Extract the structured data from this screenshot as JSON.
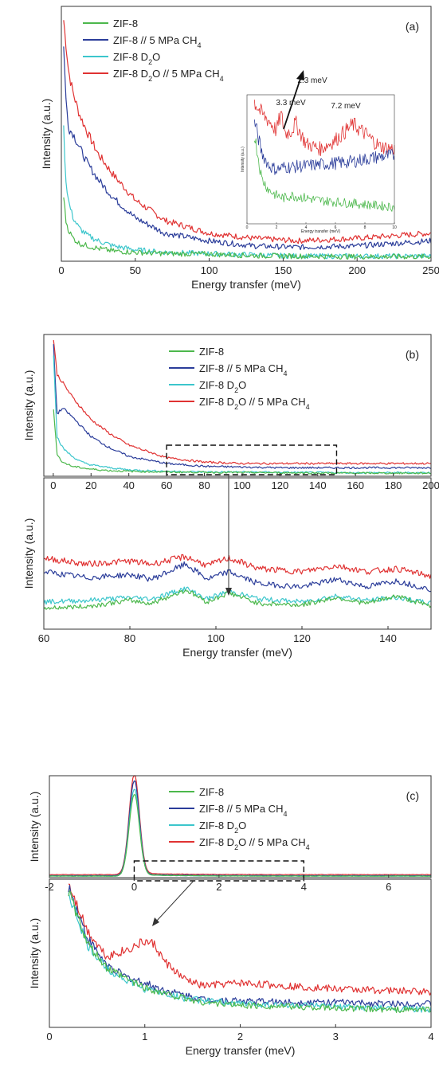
{
  "legend_entries": [
    {
      "pre": "ZIF-8",
      "sub": "",
      "post": "",
      "color": "#4cb84c"
    },
    {
      "pre": "ZIF-8 // 5 MPa CH",
      "sub": "4",
      "post": "",
      "color": "#2b3d9a"
    },
    {
      "pre": "ZIF-8 D",
      "sub": "2",
      "post": "O",
      "color": "#3cc6cc"
    },
    {
      "pre": "ZIF-8 D",
      "sub": "2",
      "post": "O // 5 MPa CH4",
      "color": "#e03232"
    }
  ],
  "legend_red_fix": {
    "pre": "ZIF-8 D",
    "sub": "2",
    "mid": "O // 5 MPa CH",
    "sub2": "4"
  },
  "chart_data": [
    {
      "id": "a-main",
      "type": "line",
      "panel_label": "(a)",
      "xlabel": "Energy transfer (meV)",
      "ylabel": "Intensity (a.u.)",
      "xlim": [
        0,
        250
      ],
      "xticks": [
        "0",
        "50",
        "100",
        "150",
        "200",
        "250"
      ],
      "ylim": [
        0,
        1
      ],
      "series": [
        {
          "name": "ZIF-8 D2O // 5 MPa CH4",
          "x": [
            1,
            3,
            5,
            8,
            12,
            18,
            25,
            35,
            50,
            70,
            100,
            130,
            160,
            200,
            250
          ],
          "y": [
            0.98,
            0.86,
            0.74,
            0.66,
            0.58,
            0.5,
            0.42,
            0.34,
            0.24,
            0.16,
            0.11,
            0.09,
            0.08,
            0.09,
            0.11
          ]
        },
        {
          "name": "ZIF-8 // 5 MPa CH4",
          "x": [
            1,
            3,
            5,
            8,
            12,
            18,
            25,
            35,
            50,
            70,
            100,
            130,
            160,
            200,
            250
          ],
          "y": [
            0.94,
            0.64,
            0.52,
            0.5,
            0.45,
            0.38,
            0.32,
            0.25,
            0.17,
            0.11,
            0.08,
            0.06,
            0.055,
            0.06,
            0.08
          ]
        },
        {
          "name": "ZIF-8 D2O",
          "x": [
            1,
            3,
            5,
            8,
            12,
            18,
            25,
            35,
            50,
            70,
            100,
            130,
            160,
            200,
            250
          ],
          "y": [
            0.6,
            0.32,
            0.23,
            0.17,
            0.13,
            0.1,
            0.08,
            0.06,
            0.045,
            0.035,
            0.03,
            0.025,
            0.02,
            0.02,
            0.02
          ]
        },
        {
          "name": "ZIF-8",
          "x": [
            1,
            3,
            5,
            8,
            12,
            18,
            25,
            35,
            50,
            70,
            100,
            130,
            160,
            200,
            250
          ],
          "y": [
            0.3,
            0.16,
            0.12,
            0.09,
            0.07,
            0.06,
            0.05,
            0.04,
            0.035,
            0.03,
            0.028,
            0.022,
            0.02,
            0.018,
            0.018
          ]
        }
      ]
    },
    {
      "id": "a-inset",
      "type": "line",
      "xlabel": "Energy transfer (meV)",
      "ylabel": "Intensity (a.u.)",
      "xlim": [
        0,
        10
      ],
      "xticks": [
        "0",
        "2",
        "4",
        "6",
        "8",
        "10"
      ],
      "annotations": [
        "2.3 meV",
        "3.3 meV",
        "7.2 meV"
      ],
      "series": [
        {
          "name": "ZIF-8 D2O // 5 MPa CH4",
          "x": [
            0.5,
            1,
            1.5,
            2,
            2.3,
            2.6,
            3,
            3.3,
            4,
            5,
            6,
            7,
            7.2,
            8,
            9,
            10
          ],
          "y": [
            0.95,
            0.85,
            0.8,
            0.72,
            0.85,
            0.7,
            0.72,
            0.78,
            0.62,
            0.58,
            0.65,
            0.75,
            0.77,
            0.7,
            0.6,
            0.58
          ]
        },
        {
          "name": "ZIF-8 // 5 MPa CH4",
          "x": [
            0.5,
            1,
            1.5,
            2,
            2.5,
            3,
            4,
            5,
            6,
            7,
            8,
            9,
            10
          ],
          "y": [
            0.8,
            0.55,
            0.45,
            0.42,
            0.44,
            0.44,
            0.45,
            0.46,
            0.47,
            0.48,
            0.5,
            0.52,
            0.53
          ]
        },
        {
          "name": "ZIF-8",
          "x": [
            0.5,
            1,
            1.5,
            2,
            2.5,
            3,
            4,
            5,
            6,
            7,
            8,
            9,
            10
          ],
          "y": [
            0.7,
            0.35,
            0.26,
            0.22,
            0.2,
            0.22,
            0.2,
            0.18,
            0.17,
            0.16,
            0.15,
            0.14,
            0.13
          ]
        }
      ]
    },
    {
      "id": "b-main",
      "type": "line",
      "panel_label": "(b)",
      "ylabel": "Intensity (a.u.)",
      "xlim": [
        -5,
        200
      ],
      "xticks": [
        "0",
        "20",
        "40",
        "60",
        "80",
        "100",
        "120",
        "140",
        "160",
        "180",
        "200"
      ],
      "zoom_box": [
        60,
        150
      ],
      "series": [
        {
          "name": "ZIF-8 D2O // 5 MPa CH4",
          "x": [
            0,
            2,
            5,
            10,
            15,
            20,
            30,
            40,
            60,
            80,
            100,
            120,
            150,
            200
          ],
          "y": [
            0.98,
            0.72,
            0.66,
            0.56,
            0.48,
            0.4,
            0.3,
            0.22,
            0.13,
            0.1,
            0.09,
            0.09,
            0.09,
            0.09
          ]
        },
        {
          "name": "ZIF-8 // 5 MPa CH4",
          "x": [
            0,
            2,
            5,
            10,
            15,
            20,
            30,
            40,
            60,
            80,
            100,
            120,
            150,
            200
          ],
          "y": [
            0.95,
            0.44,
            0.48,
            0.42,
            0.35,
            0.28,
            0.2,
            0.14,
            0.09,
            0.07,
            0.065,
            0.06,
            0.06,
            0.06
          ]
        },
        {
          "name": "ZIF-8 D2O",
          "x": [
            0,
            2,
            5,
            10,
            15,
            20,
            30,
            40,
            60,
            80,
            100,
            120,
            150,
            200
          ],
          "y": [
            0.9,
            0.28,
            0.2,
            0.14,
            0.1,
            0.08,
            0.06,
            0.045,
            0.035,
            0.03,
            0.03,
            0.028,
            0.025,
            0.025
          ]
        },
        {
          "name": "ZIF-8",
          "x": [
            0,
            2,
            5,
            10,
            15,
            20,
            30,
            40,
            60,
            80,
            100,
            120,
            150,
            200
          ],
          "y": [
            0.5,
            0.15,
            0.1,
            0.07,
            0.06,
            0.05,
            0.04,
            0.035,
            0.03,
            0.028,
            0.026,
            0.025,
            0.022,
            0.022
          ]
        }
      ]
    },
    {
      "id": "b-zoom",
      "type": "line",
      "xlabel": "Energy transfer (meV)",
      "ylabel": "Intensity (a.u.)",
      "xlim": [
        60,
        150
      ],
      "xticks": [
        "60",
        "80",
        "100",
        "120",
        "140"
      ],
      "series": [
        {
          "name": "ZIF-8 D2O // 5 MPa CH4",
          "x": [
            60,
            70,
            80,
            85,
            93,
            98,
            103,
            110,
            120,
            128,
            135,
            142,
            150
          ],
          "y": [
            0.47,
            0.43,
            0.45,
            0.43,
            0.48,
            0.42,
            0.47,
            0.4,
            0.38,
            0.42,
            0.38,
            0.4,
            0.35
          ]
        },
        {
          "name": "ZIF-8 // 5 MPa CH4",
          "x": [
            60,
            70,
            80,
            85,
            93,
            98,
            103,
            110,
            120,
            128,
            135,
            142,
            150
          ],
          "y": [
            0.38,
            0.34,
            0.36,
            0.33,
            0.43,
            0.33,
            0.38,
            0.3,
            0.28,
            0.33,
            0.28,
            0.32,
            0.26
          ]
        },
        {
          "name": "ZIF-8 D2O",
          "x": [
            60,
            70,
            80,
            85,
            93,
            98,
            103,
            110,
            120,
            128,
            135,
            142,
            150
          ],
          "y": [
            0.18,
            0.19,
            0.21,
            0.2,
            0.27,
            0.2,
            0.25,
            0.2,
            0.18,
            0.22,
            0.19,
            0.21,
            0.17
          ]
        },
        {
          "name": "ZIF-8",
          "x": [
            60,
            70,
            80,
            85,
            93,
            98,
            103,
            110,
            120,
            128,
            135,
            142,
            150
          ],
          "y": [
            0.14,
            0.15,
            0.19,
            0.17,
            0.26,
            0.18,
            0.24,
            0.17,
            0.16,
            0.21,
            0.17,
            0.22,
            0.15
          ]
        }
      ]
    },
    {
      "id": "c-main",
      "type": "line",
      "panel_label": "(c)",
      "ylabel": "Intensity (a.u.)",
      "xlim": [
        -2,
        7
      ],
      "xticks": [
        "-2",
        "0",
        "2",
        "4",
        "6"
      ],
      "zoom_box": [
        0,
        4
      ],
      "series": [
        {
          "name": "ZIF-8 D2O // 5 MPa CH4",
          "peak": 0.98,
          "sigma": 0.12,
          "base": 0.03
        },
        {
          "name": "ZIF-8 // 5 MPa CH4",
          "peak": 0.93,
          "sigma": 0.12,
          "base": 0.02
        },
        {
          "name": "ZIF-8 D2O",
          "peak": 0.85,
          "sigma": 0.12,
          "base": 0.015
        },
        {
          "name": "ZIF-8",
          "peak": 0.8,
          "sigma": 0.12,
          "base": 0.015
        }
      ]
    },
    {
      "id": "c-zoom",
      "type": "line",
      "xlabel": "Energy transfer (meV)",
      "ylabel": "Intensity (a.u.)",
      "xlim": [
        0,
        4
      ],
      "xticks": [
        "0",
        "1",
        "2",
        "3",
        "4"
      ],
      "series": [
        {
          "name": "ZIF-8 D2O // 5 MPa CH4",
          "x": [
            0.2,
            0.4,
            0.6,
            0.8,
            1,
            1.1,
            1.2,
            1.4,
            1.6,
            2,
            2.5,
            3,
            3.5,
            4
          ],
          "y": [
            0.98,
            0.65,
            0.48,
            0.52,
            0.58,
            0.56,
            0.45,
            0.33,
            0.28,
            0.3,
            0.28,
            0.26,
            0.25,
            0.24
          ]
        },
        {
          "name": "ZIF-8 // 5 MPa CH4",
          "x": [
            0.2,
            0.4,
            0.6,
            0.8,
            1,
            1.2,
            1.4,
            1.6,
            2,
            2.5,
            3,
            3.5,
            4
          ],
          "y": [
            0.95,
            0.6,
            0.42,
            0.34,
            0.3,
            0.25,
            0.22,
            0.19,
            0.18,
            0.17,
            0.17,
            0.16,
            0.16
          ]
        },
        {
          "name": "ZIF-8 D2O",
          "x": [
            0.2,
            0.4,
            0.6,
            0.8,
            1,
            1.2,
            1.4,
            1.6,
            2,
            2.5,
            3,
            3.5,
            4
          ],
          "y": [
            0.9,
            0.55,
            0.4,
            0.32,
            0.26,
            0.23,
            0.2,
            0.18,
            0.16,
            0.15,
            0.14,
            0.13,
            0.12
          ]
        },
        {
          "name": "ZIF-8",
          "x": [
            0.2,
            0.4,
            0.6,
            0.8,
            1,
            1.2,
            1.4,
            1.6,
            2,
            2.5,
            3,
            3.5,
            4
          ],
          "y": [
            0.92,
            0.56,
            0.4,
            0.33,
            0.27,
            0.23,
            0.2,
            0.17,
            0.15,
            0.14,
            0.13,
            0.12,
            0.12
          ]
        }
      ]
    }
  ]
}
